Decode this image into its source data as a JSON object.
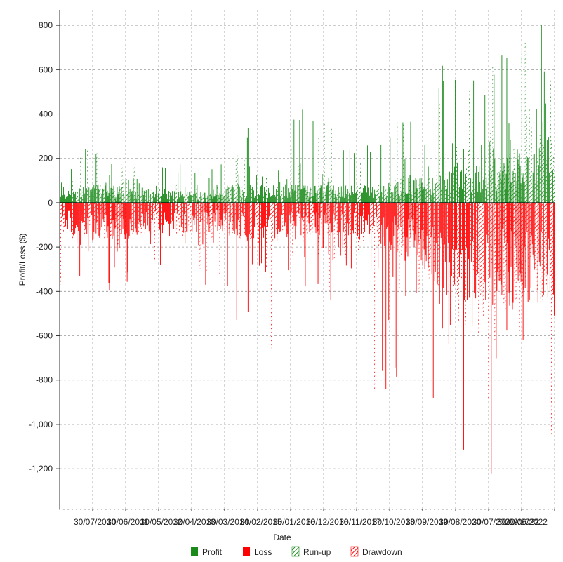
{
  "chart_data": {
    "type": "bar",
    "title": "",
    "xlabel": "Date",
    "ylabel": "Profit/Loss ($)",
    "ylim": [
      -1380,
      870
    ],
    "y_ticks": [
      800,
      600,
      400,
      200,
      0,
      -200,
      -400,
      -600,
      -800,
      -1000,
      -1200
    ],
    "y_tick_labels": [
      "800",
      "600",
      "400",
      "200",
      "0",
      "-200",
      "-400",
      "-600",
      "-800",
      "-1,000",
      "-1,200"
    ],
    "x_tick_labels": [
      "30/07/2010",
      "30/06/2011",
      "30/05/2012",
      "30/04/2013",
      "30/03/2014",
      "30/02/2015",
      "30/01/2016",
      "30/12/2016",
      "30/11/2017",
      "30/10/2018",
      "30/09/2019",
      "30/08/2020",
      "30/07/2021",
      "30/06/2022",
      "30/09/2022"
    ],
    "grid": true,
    "legend_position": "bottom",
    "series": [
      {
        "name": "Profit",
        "color": "#1a8a1a",
        "style": "solid",
        "sign": "positive"
      },
      {
        "name": "Loss",
        "color": "#ff0000",
        "style": "solid",
        "sign": "negative"
      },
      {
        "name": "Run-up",
        "color": "#1a8a1a",
        "style": "hatched",
        "sign": "positive"
      },
      {
        "name": "Drawdown",
        "color": "#ff0000",
        "style": "hatched",
        "sign": "negative"
      }
    ],
    "bar_count": 700,
    "profit_envelope": [
      {
        "x": 0.0,
        "base": 45,
        "peak": 200
      },
      {
        "x": 0.07,
        "base": 70,
        "peak": 260
      },
      {
        "x": 0.2,
        "base": 55,
        "peak": 190
      },
      {
        "x": 0.32,
        "base": 35,
        "peak": 160
      },
      {
        "x": 0.34,
        "base": 70,
        "peak": 310
      },
      {
        "x": 0.5,
        "base": 70,
        "peak": 440
      },
      {
        "x": 0.62,
        "base": 65,
        "peak": 270
      },
      {
        "x": 0.76,
        "base": 110,
        "peak": 620
      },
      {
        "x": 0.86,
        "base": 150,
        "peak": 630
      },
      {
        "x": 0.94,
        "base": 220,
        "peak": 760
      },
      {
        "x": 0.98,
        "base": 280,
        "peak": 860
      },
      {
        "x": 1.0,
        "base": 240,
        "peak": 490
      }
    ],
    "loss_envelope": [
      {
        "x": 0.0,
        "base": -110,
        "peak": -420
      },
      {
        "x": 0.08,
        "base": -150,
        "peak": -490
      },
      {
        "x": 0.2,
        "base": -120,
        "peak": -280
      },
      {
        "x": 0.32,
        "base": -110,
        "peak": -400
      },
      {
        "x": 0.38,
        "base": -150,
        "peak": -700
      },
      {
        "x": 0.44,
        "base": -150,
        "peak": -650
      },
      {
        "x": 0.54,
        "base": -120,
        "peak": -440
      },
      {
        "x": 0.6,
        "base": -140,
        "peak": -880
      },
      {
        "x": 0.72,
        "base": -220,
        "peak": -850
      },
      {
        "x": 0.78,
        "base": -350,
        "peak": -1180
      },
      {
        "x": 0.86,
        "base": -400,
        "peak": -1380
      },
      {
        "x": 0.95,
        "base": -380,
        "peak": -1110
      },
      {
        "x": 1.0,
        "base": -420,
        "peak": -1220
      }
    ]
  }
}
